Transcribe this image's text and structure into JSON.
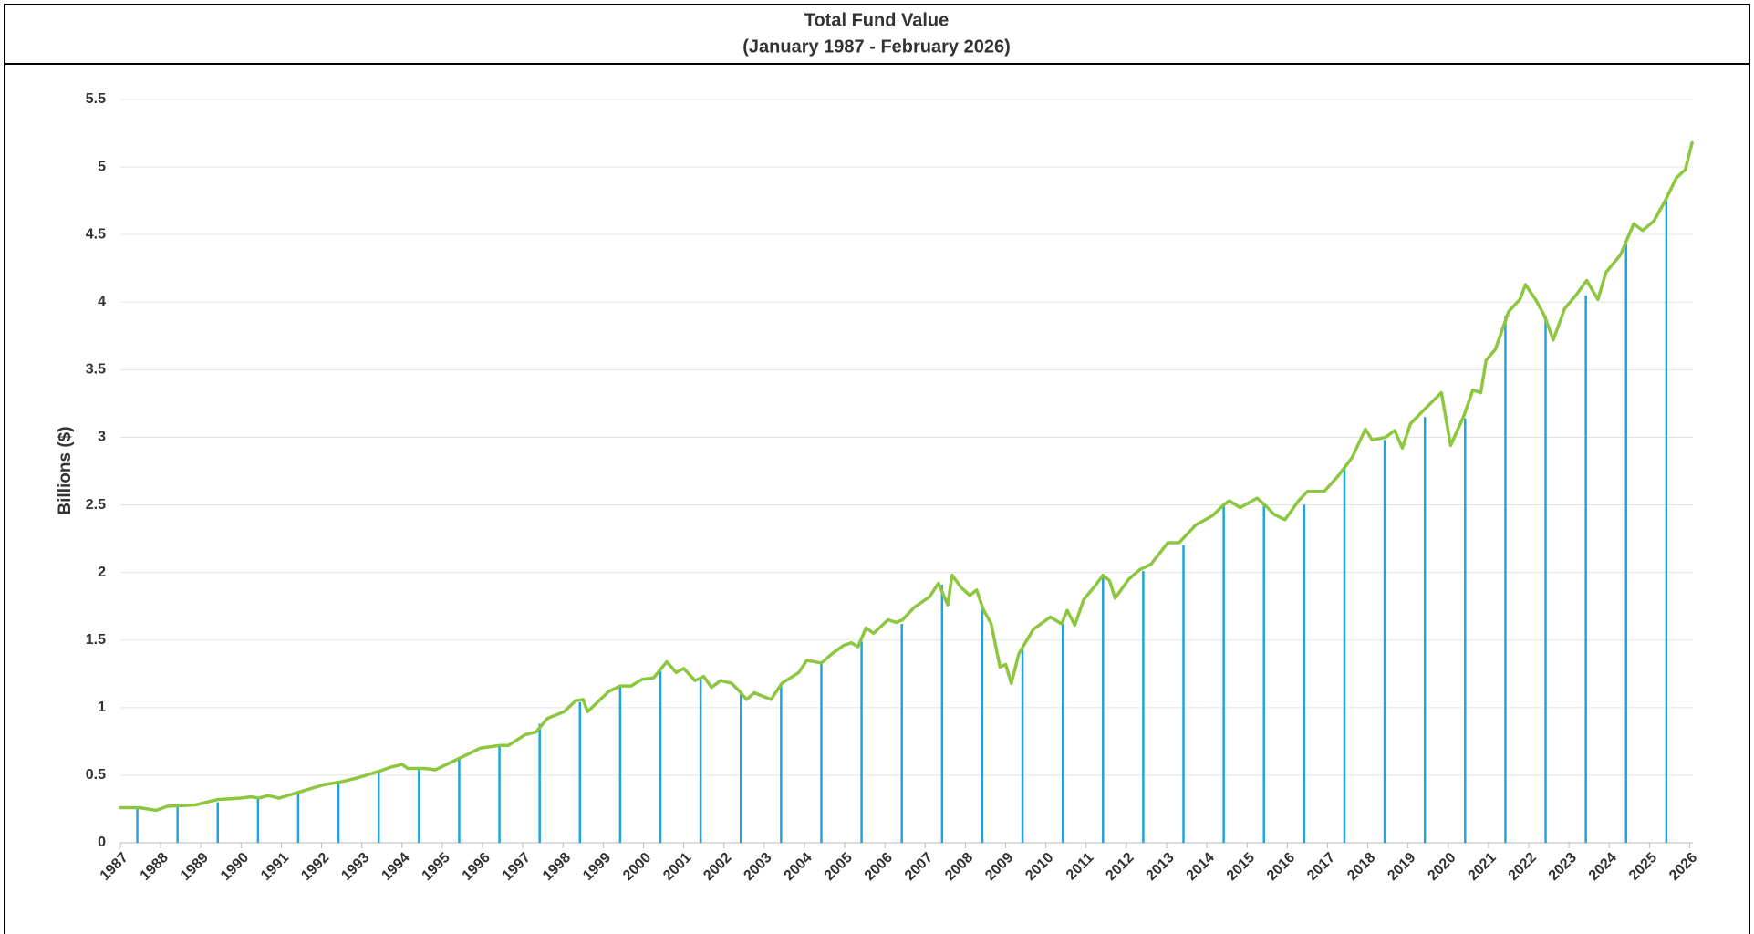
{
  "chart_data": {
    "type": "line",
    "title": "Total Fund Value",
    "subtitle": "(January 1987 - February 2026)",
    "y_label": "Billions ($)",
    "xlim": [
      1987,
      2026.08
    ],
    "xticks": [
      1987,
      1988,
      1989,
      1990,
      1991,
      1992,
      1993,
      1994,
      1995,
      1996,
      1997,
      1998,
      1999,
      2000,
      2001,
      2002,
      2003,
      2004,
      2005,
      2006,
      2007,
      2008,
      2009,
      2010,
      2011,
      2012,
      2013,
      2014,
      2015,
      2016,
      2017,
      2018,
      2019,
      2020,
      2021,
      2022,
      2023,
      2024,
      2025,
      2026
    ],
    "ylim": [
      0,
      5.5
    ],
    "yticks": [
      0,
      0.5,
      1,
      1.5,
      2,
      2.5,
      3,
      3.5,
      4,
      4.5,
      5,
      5.5
    ],
    "grid": true,
    "series": [
      {
        "type": "line",
        "color": "#8dc63f",
        "x": [
          1987.0,
          1987.47,
          1987.89,
          1988.17,
          1988.86,
          1989.42,
          1989.97,
          1990.25,
          1990.44,
          1990.67,
          1990.94,
          1991.5,
          1992.06,
          1992.47,
          1992.89,
          1993.44,
          1993.72,
          1994.0,
          1994.14,
          1994.56,
          1994.83,
          1995.39,
          1995.94,
          1996.42,
          1996.64,
          1997.06,
          1997.33,
          1997.61,
          1998.03,
          1998.31,
          1998.5,
          1998.61,
          1999.14,
          1999.42,
          1999.69,
          1999.97,
          2000.25,
          2000.58,
          2000.81,
          2001.0,
          2001.28,
          2001.5,
          2001.69,
          2001.92,
          2002.19,
          2002.39,
          2002.56,
          2002.75,
          2003.17,
          2003.44,
          2003.86,
          2004.06,
          2004.42,
          2004.69,
          2004.97,
          2005.17,
          2005.33,
          2005.53,
          2005.72,
          2006.08,
          2006.28,
          2006.44,
          2006.72,
          2007.11,
          2007.33,
          2007.56,
          2007.67,
          2007.89,
          2008.11,
          2008.28,
          2008.44,
          2008.64,
          2008.86,
          2009.0,
          2009.14,
          2009.33,
          2009.69,
          2010.11,
          2010.39,
          2010.53,
          2010.72,
          2010.94,
          2011.22,
          2011.42,
          2011.58,
          2011.72,
          2012.06,
          2012.33,
          2012.61,
          2013.03,
          2013.31,
          2013.72,
          2014.14,
          2014.42,
          2014.56,
          2014.83,
          2015.25,
          2015.44,
          2015.67,
          2015.94,
          2016.28,
          2016.5,
          2016.92,
          2017.28,
          2017.61,
          2017.94,
          2018.11,
          2018.44,
          2018.67,
          2018.86,
          2019.06,
          2019.42,
          2019.83,
          2020.06,
          2020.39,
          2020.61,
          2020.81,
          2020.94,
          2021.17,
          2021.5,
          2021.78,
          2021.92,
          2022.19,
          2022.39,
          2022.61,
          2022.89,
          2023.17,
          2023.44,
          2023.72,
          2023.92,
          2024.28,
          2024.61,
          2024.83,
          2025.11,
          2025.39,
          2025.67,
          2025.89,
          2026.06
        ],
        "values": [
          0.26,
          0.26,
          0.24,
          0.27,
          0.28,
          0.32,
          0.33,
          0.34,
          0.33,
          0.35,
          0.33,
          0.38,
          0.43,
          0.45,
          0.48,
          0.53,
          0.56,
          0.58,
          0.55,
          0.55,
          0.54,
          0.62,
          0.7,
          0.72,
          0.72,
          0.8,
          0.82,
          0.92,
          0.97,
          1.05,
          1.06,
          0.97,
          1.12,
          1.16,
          1.16,
          1.21,
          1.22,
          1.34,
          1.26,
          1.29,
          1.2,
          1.23,
          1.15,
          1.2,
          1.18,
          1.12,
          1.06,
          1.11,
          1.06,
          1.18,
          1.26,
          1.35,
          1.33,
          1.4,
          1.46,
          1.48,
          1.45,
          1.59,
          1.55,
          1.65,
          1.63,
          1.65,
          1.74,
          1.82,
          1.92,
          1.76,
          1.98,
          1.89,
          1.83,
          1.87,
          1.73,
          1.62,
          1.3,
          1.32,
          1.18,
          1.4,
          1.58,
          1.67,
          1.62,
          1.72,
          1.61,
          1.8,
          1.9,
          1.98,
          1.94,
          1.81,
          1.95,
          2.02,
          2.06,
          2.22,
          2.22,
          2.35,
          2.42,
          2.5,
          2.53,
          2.48,
          2.55,
          2.5,
          2.43,
          2.39,
          2.53,
          2.6,
          2.6,
          2.72,
          2.85,
          3.06,
          2.98,
          3.0,
          3.05,
          2.92,
          3.1,
          3.21,
          3.33,
          2.94,
          3.16,
          3.35,
          3.33,
          3.57,
          3.65,
          3.93,
          4.02,
          4.13,
          4.01,
          3.9,
          3.72,
          3.95,
          4.05,
          4.16,
          4.02,
          4.22,
          4.35,
          4.58,
          4.53,
          4.6,
          4.75,
          4.92,
          4.98,
          5.18
        ]
      },
      {
        "type": "stem",
        "color": "#1ca6df",
        "x": [
          1987.42,
          1988.42,
          1989.42,
          1990.42,
          1991.42,
          1992.42,
          1993.42,
          1994.42,
          1995.42,
          1996.42,
          1997.42,
          1998.42,
          1999.42,
          2000.42,
          2001.42,
          2002.42,
          2003.42,
          2004.42,
          2005.42,
          2006.42,
          2007.42,
          2008.42,
          2009.42,
          2010.42,
          2011.42,
          2012.42,
          2013.42,
          2014.42,
          2015.42,
          2016.42,
          2017.42,
          2018.42,
          2019.42,
          2020.42,
          2021.42,
          2022.42,
          2023.42,
          2024.42,
          2025.42
        ],
        "values": [
          0.26,
          0.27,
          0.3,
          0.33,
          0.38,
          0.45,
          0.53,
          0.54,
          0.62,
          0.72,
          0.88,
          1.04,
          1.16,
          1.27,
          1.22,
          1.12,
          1.18,
          1.33,
          1.49,
          1.62,
          1.91,
          1.73,
          1.44,
          1.62,
          1.97,
          2.01,
          2.2,
          2.49,
          2.5,
          2.5,
          2.78,
          2.98,
          3.15,
          3.14,
          3.9,
          3.9,
          4.05,
          4.43,
          4.75
        ]
      }
    ]
  }
}
